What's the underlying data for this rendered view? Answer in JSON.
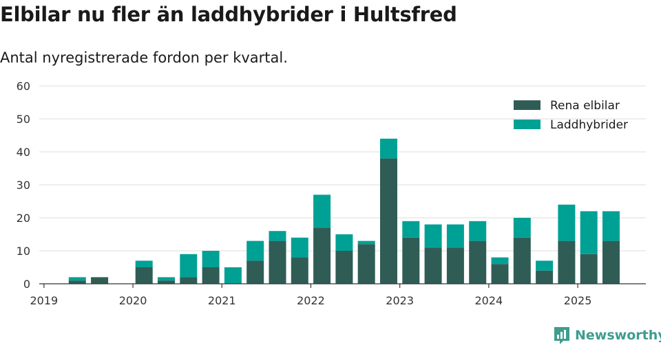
{
  "title": "Elbilar nu fler än laddhybrider i Hultsfred",
  "subtitle": "Antal nyregistrerade fordon per kvartal.",
  "brand": {
    "name": "Newsworthy",
    "icon": "newsworthy-logo-icon",
    "color": "#3e9d8f"
  },
  "chart_data": {
    "type": "bar",
    "stacked": true,
    "x_tick_labels": [
      "2019",
      "2020",
      "2021",
      "2022",
      "2023",
      "2024",
      "2025"
    ],
    "categories": [
      "2019 Q1",
      "2019 Q2",
      "2019 Q3",
      "2019 Q4",
      "2020 Q1",
      "2020 Q2",
      "2020 Q3",
      "2020 Q4",
      "2021 Q1",
      "2021 Q2",
      "2021 Q3",
      "2021 Q4",
      "2022 Q1",
      "2022 Q2",
      "2022 Q3",
      "2022 Q4",
      "2023 Q1",
      "2023 Q2",
      "2023 Q3",
      "2023 Q4",
      "2024 Q1",
      "2024 Q2",
      "2024 Q3",
      "2024 Q4",
      "2025 Q1",
      "2025 Q2"
    ],
    "series": [
      {
        "name": "Rena elbilar",
        "color": "#2f5d55",
        "values": [
          0,
          1,
          2,
          0,
          5,
          1,
          2,
          5,
          0,
          7,
          13,
          8,
          17,
          10,
          12,
          38,
          14,
          11,
          11,
          13,
          6,
          14,
          4,
          13,
          9,
          13
        ]
      },
      {
        "name": "Laddhybrider",
        "color": "#00a195",
        "values": [
          0,
          1,
          0,
          0,
          2,
          1,
          7,
          5,
          5,
          6,
          3,
          6,
          10,
          5,
          1,
          6,
          5,
          7,
          7,
          6,
          2,
          6,
          3,
          11,
          13,
          9
        ]
      }
    ],
    "y_ticks": [
      0,
      10,
      20,
      30,
      40,
      50,
      60
    ],
    "ylim": [
      0,
      60
    ],
    "grid": true,
    "legend_position": "top-right"
  }
}
